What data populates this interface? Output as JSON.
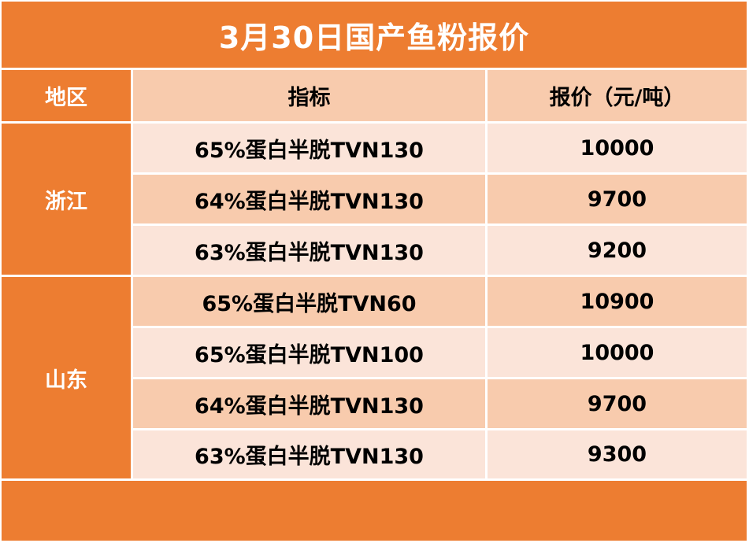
{
  "title": "3月30日国产鱼粉报价",
  "headers": {
    "region": "地区",
    "spec": "指标",
    "price": "报价（元/吨）"
  },
  "regions": {
    "zhejiang": "浙江",
    "shandong": "山东"
  },
  "rows": [
    {
      "spec": "65%蛋白半脱TVN130",
      "price": "10000"
    },
    {
      "spec": "64%蛋白半脱TVN130",
      "price": "9700"
    },
    {
      "spec": "63%蛋白半脱TVN130",
      "price": "9200"
    },
    {
      "spec": "65%蛋白半脱TVN60",
      "price": "10900"
    },
    {
      "spec": "65%蛋白半脱TVN100",
      "price": "10000"
    },
    {
      "spec": "64%蛋白半脱TVN130",
      "price": "9700"
    },
    {
      "spec": "63%蛋白半脱TVN130",
      "price": "9300"
    }
  ],
  "colors": {
    "accent": "#ED7D31",
    "row_dark": "#F8CBAD",
    "row_light": "#FBE4D9"
  }
}
